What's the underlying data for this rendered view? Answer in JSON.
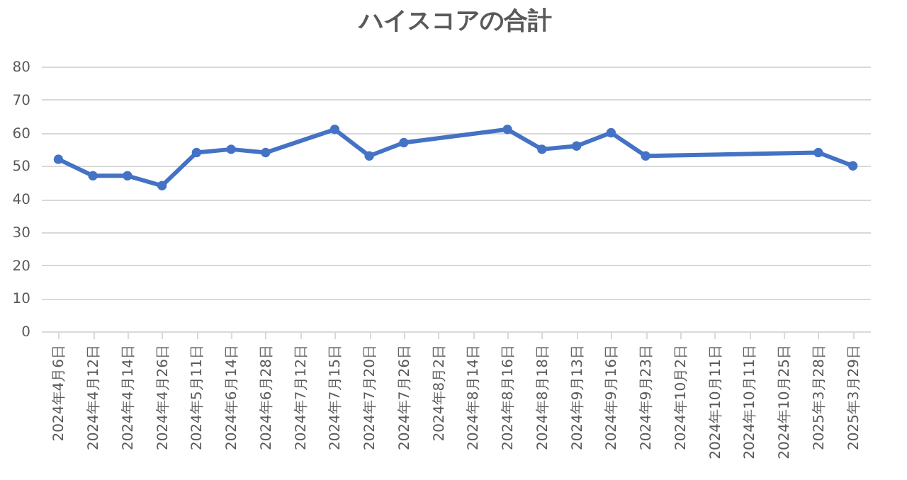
{
  "chart_data": {
    "type": "line",
    "title": "ハイスコアの合計",
    "categories": [
      "2024年4月6日",
      "2024年4月12日",
      "2024年4月14日",
      "2024年4月26日",
      "2024年5月11日",
      "2024年6月14日",
      "2024年6月28日",
      "2024年7月12日",
      "2024年7月15日",
      "2024年7月20日",
      "2024年7月26日",
      "2024年8月2日",
      "2024年8月14日",
      "2024年8月16日",
      "2024年8月18日",
      "2024年9月13日",
      "2024年9月16日",
      "2024年9月23日",
      "2024年10月2日",
      "2024年10月11日",
      "2024年10月11日",
      "2024年10月25日",
      "2025年3月28日",
      "2025年3月29日"
    ],
    "series": [
      {
        "color": "#4472c4",
        "values": [
          52,
          47,
          47,
          44,
          54,
          55,
          54,
          null,
          61,
          53,
          57,
          null,
          null,
          61,
          55,
          56,
          60,
          53,
          null,
          null,
          null,
          null,
          54,
          50
        ]
      }
    ],
    "ylim": [
      0,
      80
    ],
    "yticks": [
      0,
      10,
      20,
      30,
      40,
      50,
      60,
      70,
      80
    ],
    "grid": "y",
    "marker": "circle",
    "line_style": "solid"
  }
}
